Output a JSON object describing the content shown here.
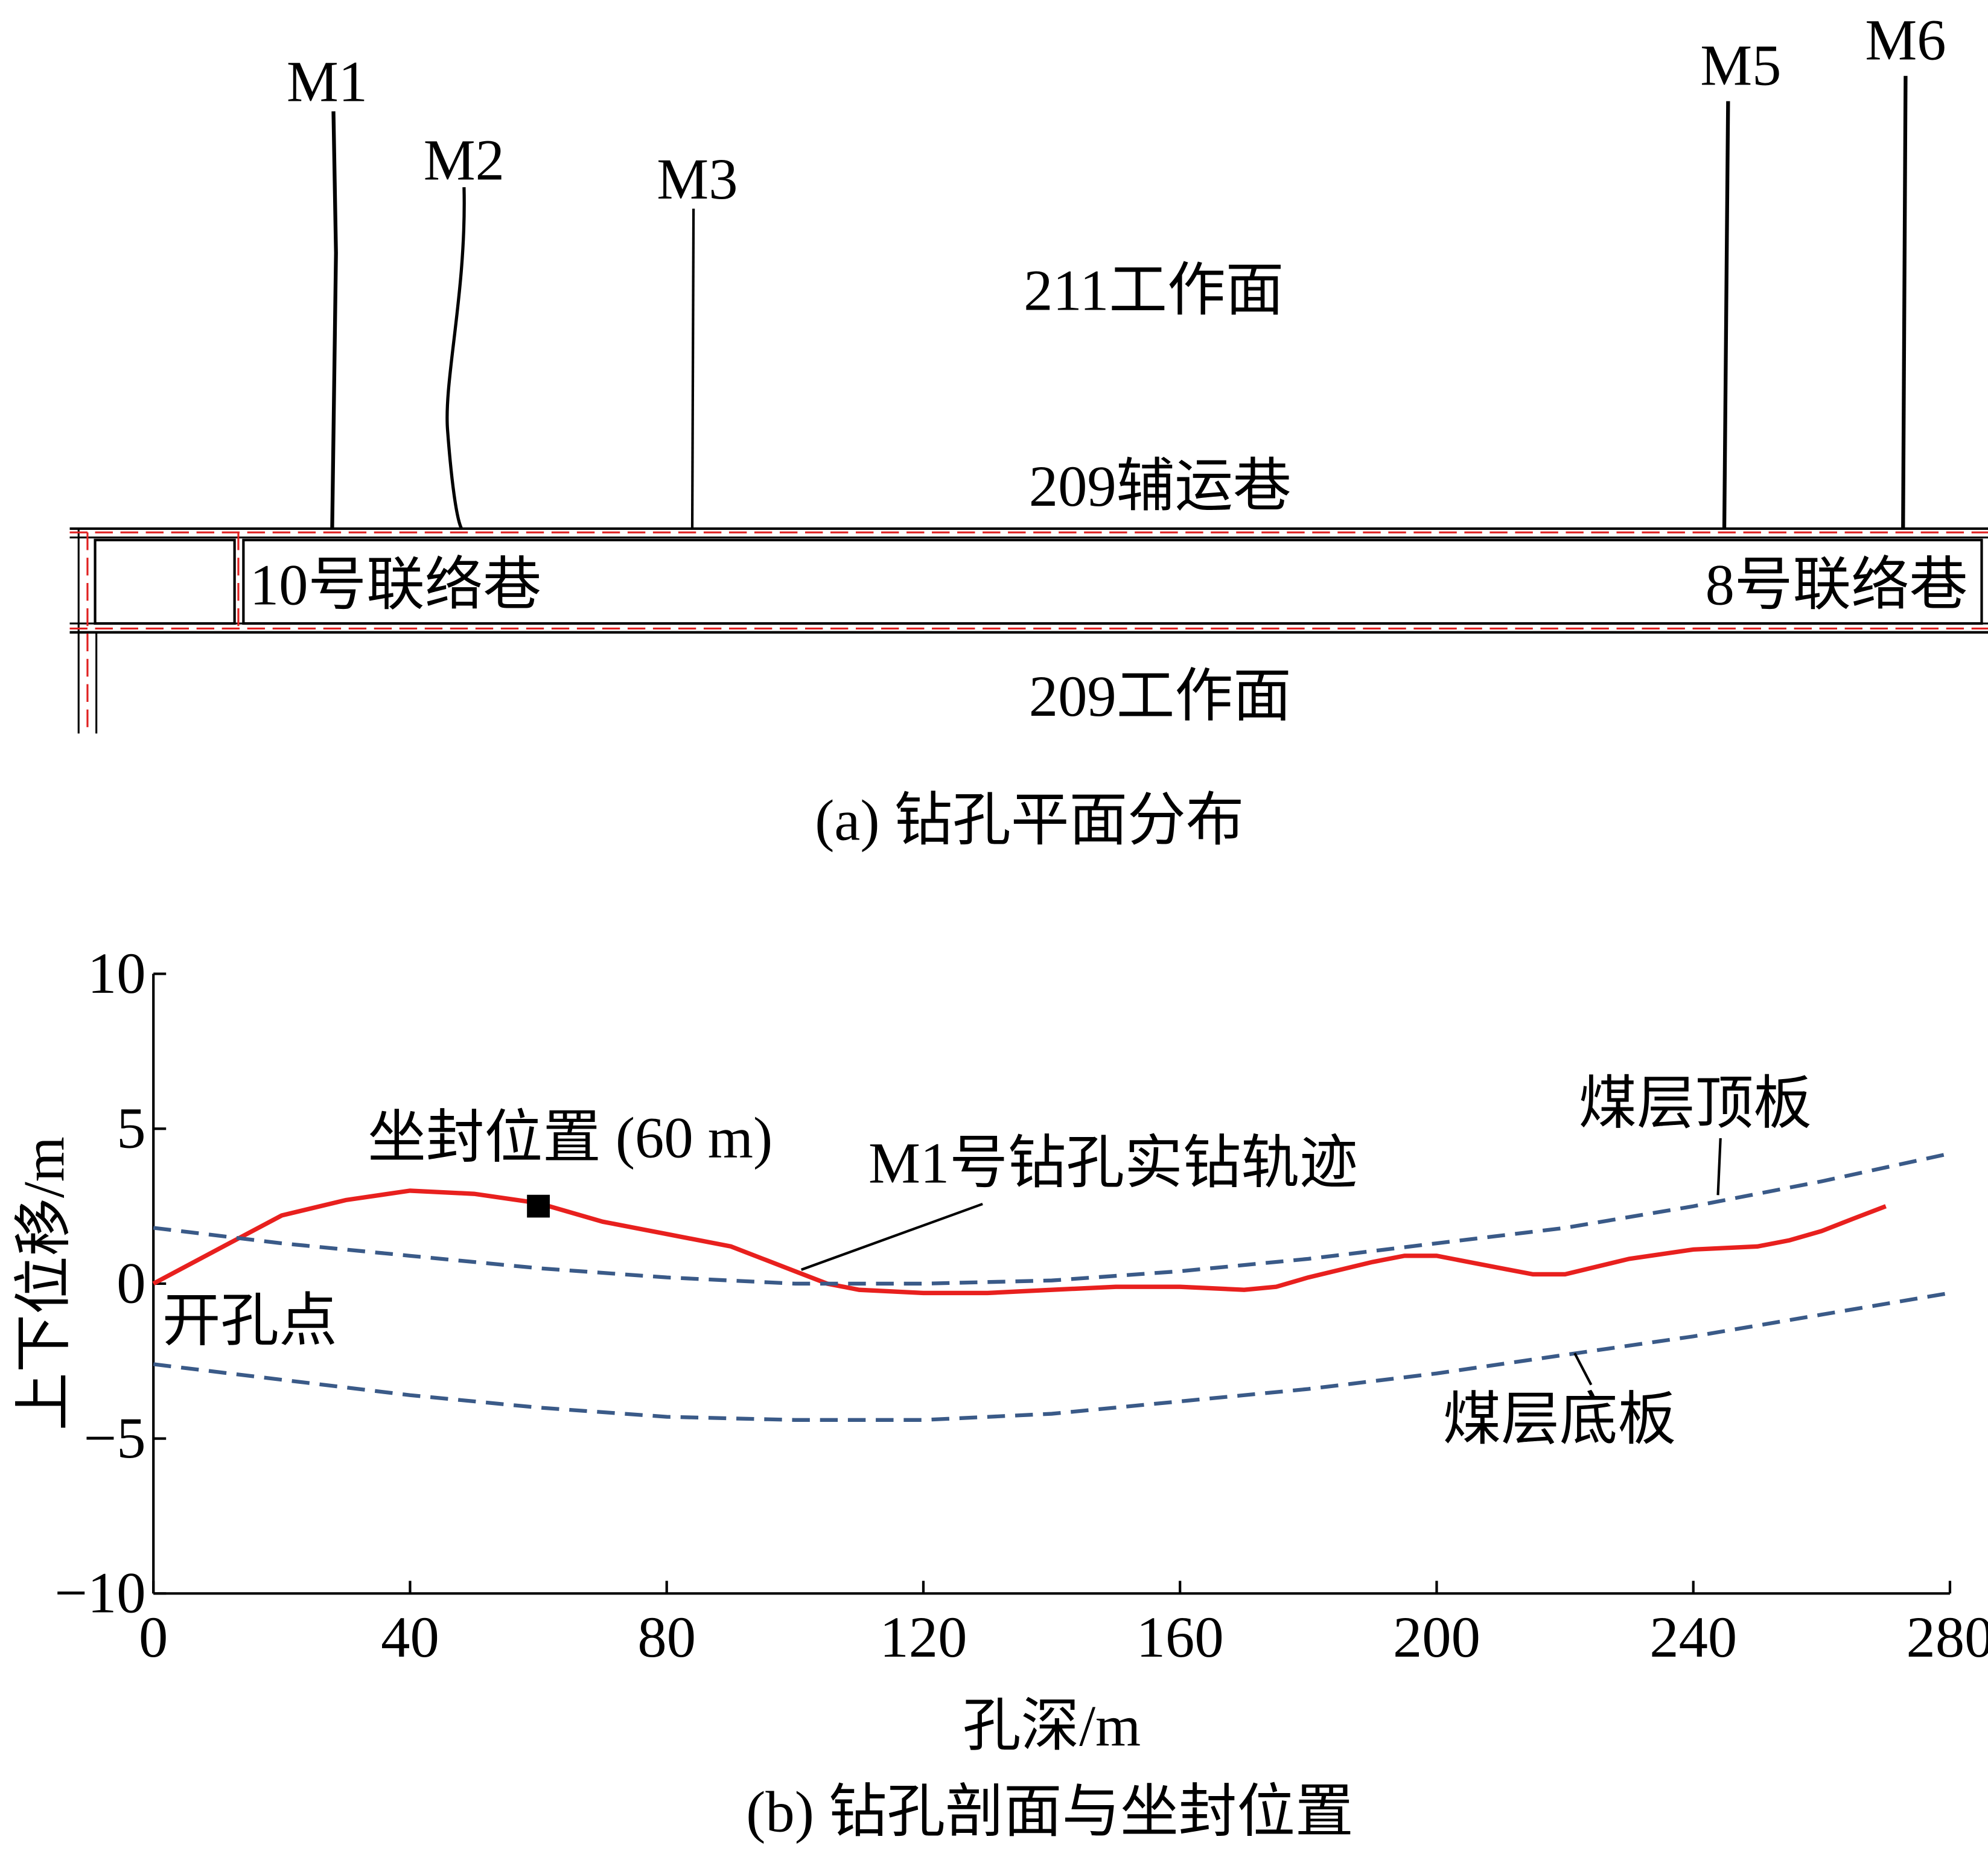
{
  "diagram": {
    "boreholes": [
      "M1",
      "M2",
      "M3",
      "M5",
      "M6"
    ],
    "areas": {
      "upper_face": "211工作面",
      "haulage_roadway": "209辅运巷",
      "left_crosscut": "10号联络巷",
      "right_crosscut": "8号联络巷",
      "lower_face": "209工作面"
    },
    "caption": "(a) 钻孔平面分布"
  },
  "chart_data": {
    "type": "line",
    "caption": "(b) 钻孔剖面与坐封位置",
    "xlabel": "孔深/m",
    "ylabel": "上下位移/m",
    "xlim": [
      0,
      280
    ],
    "xticks": [
      0,
      40,
      80,
      120,
      160,
      200,
      240,
      280
    ],
    "ylim": [
      -10,
      10
    ],
    "yticks": [
      {
        "value": -10,
        "label": "−10"
      },
      {
        "value": -5,
        "label": "−5"
      },
      0,
      5,
      10
    ],
    "series": [
      {
        "name": "M1号钻孔实钻轨迹",
        "color": "#e8201e",
        "dashed": false,
        "x": [
          0,
          10,
          20,
          30,
          40,
          50,
          60,
          70,
          80,
          90,
          95,
          100,
          105,
          110,
          120,
          130,
          140,
          150,
          160,
          170,
          175,
          180,
          190,
          195,
          200,
          210,
          215,
          220,
          230,
          240,
          250,
          255,
          260,
          265,
          270
        ],
        "values": [
          0,
          1.1,
          2.2,
          2.7,
          3.0,
          2.9,
          2.6,
          2.0,
          1.6,
          1.2,
          0.8,
          0.4,
          0,
          -0.2,
          -0.3,
          -0.3,
          -0.2,
          -0.1,
          -0.1,
          -0.2,
          -0.1,
          0.2,
          0.7,
          0.9,
          0.9,
          0.5,
          0.3,
          0.3,
          0.8,
          1.1,
          1.2,
          1.4,
          1.7,
          2.1,
          2.5
        ]
      },
      {
        "name": "煤层顶板",
        "color": "#3a5a88",
        "dashed": true,
        "x": [
          0,
          20,
          40,
          60,
          80,
          100,
          120,
          140,
          160,
          180,
          200,
          220,
          240,
          260,
          280
        ],
        "values": [
          1.8,
          1.3,
          0.9,
          0.5,
          0.2,
          0.0,
          0.0,
          0.1,
          0.4,
          0.8,
          1.3,
          1.8,
          2.5,
          3.3,
          4.2
        ]
      },
      {
        "name": "煤层底板",
        "color": "#3a5a88",
        "dashed": true,
        "x": [
          0,
          20,
          40,
          60,
          80,
          100,
          120,
          140,
          160,
          180,
          200,
          220,
          240,
          260,
          280
        ],
        "values": [
          -2.6,
          -3.1,
          -3.6,
          -4.0,
          -4.3,
          -4.4,
          -4.4,
          -4.2,
          -3.8,
          -3.4,
          -2.9,
          -2.3,
          -1.7,
          -1.0,
          -0.3
        ]
      }
    ],
    "seal_point": {
      "label": "坐封位置 (60 m)",
      "x": 60,
      "y": 2.5
    },
    "origin_label": "开孔点"
  }
}
